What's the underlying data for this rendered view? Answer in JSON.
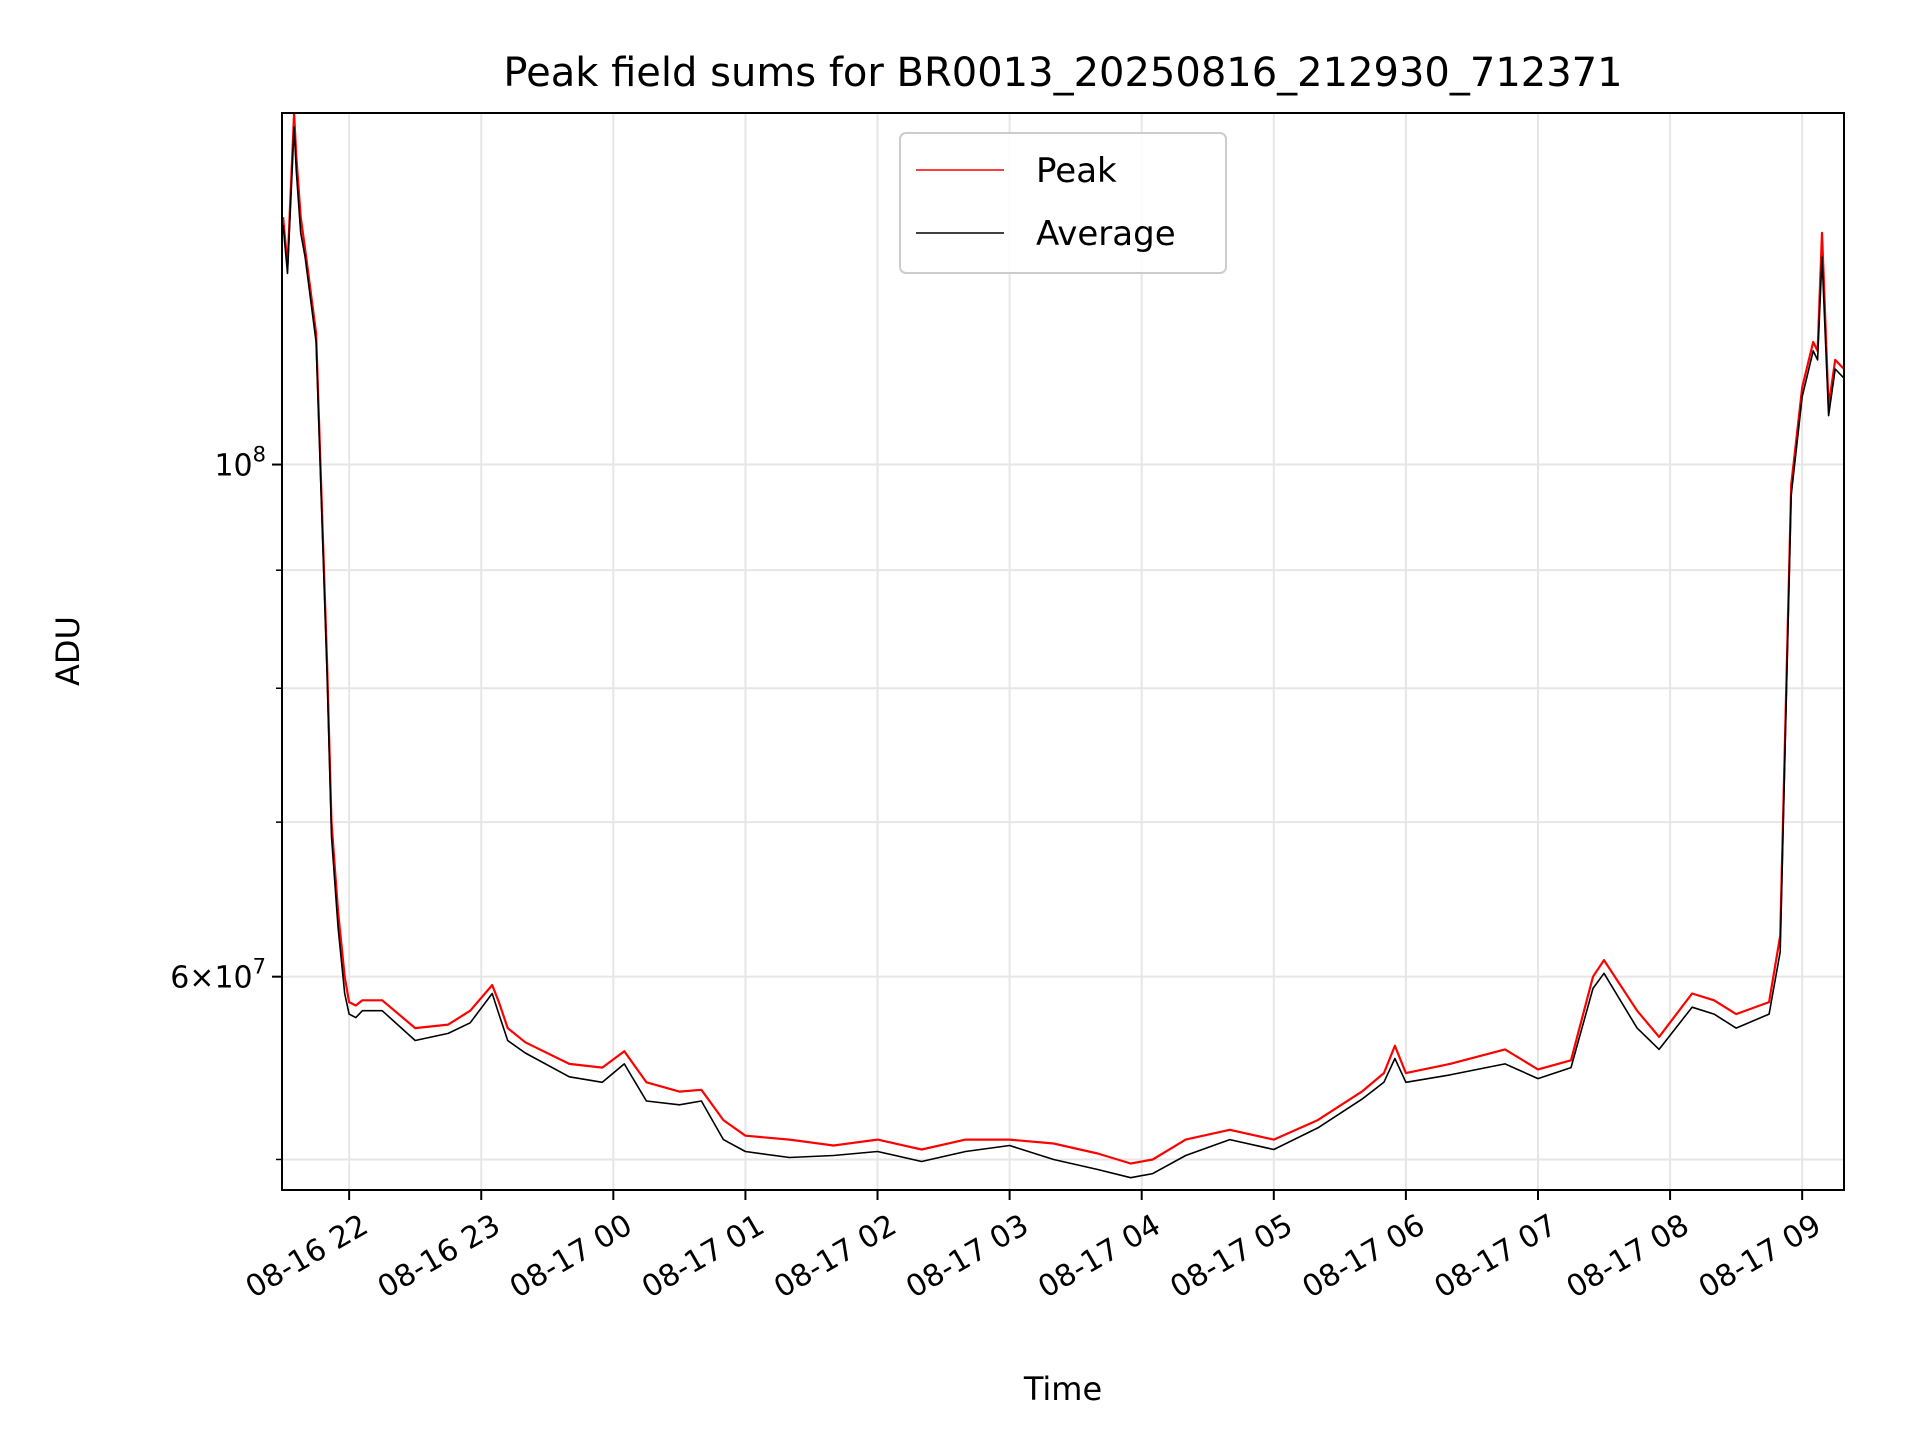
{
  "chart_data": {
    "type": "line",
    "title": "Peak field sums for BR0013_20250816_212930_712371",
    "xlabel": "Time",
    "ylabel": "ADU",
    "yscale": "log",
    "ylim": [
      48500000,
      142000000
    ],
    "xlim": [
      "2025-08-16 21:29:30",
      "2025-08-17 09:19:00"
    ],
    "grid": true,
    "legend_position": "upper center",
    "x_tick_labels": [
      "08-16 22",
      "08-16 23",
      "08-17 00",
      "08-17 01",
      "08-17 02",
      "08-17 03",
      "08-17 04",
      "08-17 05",
      "08-17 06",
      "08-17 07",
      "08-17 08",
      "08-17 09"
    ],
    "y_tick_labels": [
      {
        "value": 100000000,
        "base": "10",
        "exp": "8"
      },
      {
        "value": 60000000,
        "base": "6×10",
        "exp": "7"
      }
    ],
    "y_minor_ticks": [
      50000000,
      70000000,
      80000000,
      90000000
    ],
    "x": [
      "2025-08-16 21:30",
      "2025-08-16 21:32",
      "2025-08-16 21:35",
      "2025-08-16 21:36",
      "2025-08-16 21:38",
      "2025-08-16 21:40",
      "2025-08-16 21:45",
      "2025-08-16 21:50",
      "2025-08-16 21:52",
      "2025-08-16 21:55",
      "2025-08-16 21:58",
      "2025-08-16 22:00",
      "2025-08-16 22:03",
      "2025-08-16 22:06",
      "2025-08-16 22:15",
      "2025-08-16 22:30",
      "2025-08-16 22:45",
      "2025-08-16 22:55",
      "2025-08-16 23:05",
      "2025-08-16 23:08",
      "2025-08-16 23:12",
      "2025-08-16 23:20",
      "2025-08-16 23:40",
      "2025-08-16 23:55",
      "2025-08-17 00:05",
      "2025-08-17 00:15",
      "2025-08-17 00:30",
      "2025-08-17 00:40",
      "2025-08-17 00:50",
      "2025-08-17 01:00",
      "2025-08-17 01:20",
      "2025-08-17 01:40",
      "2025-08-17 02:00",
      "2025-08-17 02:20",
      "2025-08-17 02:40",
      "2025-08-17 03:00",
      "2025-08-17 03:20",
      "2025-08-17 03:40",
      "2025-08-17 03:55",
      "2025-08-17 04:05",
      "2025-08-17 04:20",
      "2025-08-17 04:40",
      "2025-08-17 05:00",
      "2025-08-17 05:20",
      "2025-08-17 05:40",
      "2025-08-17 05:50",
      "2025-08-17 05:55",
      "2025-08-17 06:00",
      "2025-08-17 06:20",
      "2025-08-17 06:45",
      "2025-08-17 07:00",
      "2025-08-17 07:15",
      "2025-08-17 07:25",
      "2025-08-17 07:30",
      "2025-08-17 07:45",
      "2025-08-17 07:55",
      "2025-08-17 08:10",
      "2025-08-17 08:20",
      "2025-08-17 08:30",
      "2025-08-17 08:45",
      "2025-08-17 08:50",
      "2025-08-17 08:55",
      "2025-08-17 09:00",
      "2025-08-17 09:05",
      "2025-08-17 09:07",
      "2025-08-17 09:09",
      "2025-08-17 09:12",
      "2025-08-17 09:15",
      "2025-08-17 09:19"
    ],
    "series": [
      {
        "name": "Peak",
        "color": "#ff0000",
        "values": [
          128000000,
          122000000,
          142000000,
          136000000,
          128000000,
          124000000,
          114000000,
          82000000,
          70000000,
          64000000,
          60000000,
          58500000,
          58300000,
          58600000,
          58600000,
          57000000,
          57200000,
          58000000,
          59500000,
          58500000,
          57000000,
          56200000,
          55000000,
          54800000,
          55700000,
          54000000,
          53500000,
          53600000,
          52000000,
          51200000,
          51000000,
          50700000,
          51000000,
          50500000,
          51000000,
          51000000,
          50800000,
          50300000,
          49800000,
          50000000,
          51000000,
          51500000,
          51000000,
          52000000,
          53500000,
          54500000,
          56000000,
          54500000,
          55000000,
          55800000,
          54700000,
          55200000,
          60000000,
          61000000,
          58000000,
          56500000,
          59000000,
          58600000,
          57800000,
          58500000,
          62500000,
          98000000,
          108000000,
          113000000,
          112000000,
          126000000,
          106000000,
          111000000,
          110000000
        ]
      },
      {
        "name": "Average",
        "color": "#000000",
        "values": [
          127000000,
          121000000,
          140000000,
          134000000,
          126000000,
          123000000,
          113000000,
          81000000,
          69000000,
          63000000,
          59000000,
          57800000,
          57600000,
          58000000,
          58000000,
          56300000,
          56700000,
          57300000,
          59000000,
          57800000,
          56300000,
          55600000,
          54300000,
          54000000,
          55000000,
          53000000,
          52800000,
          53000000,
          51000000,
          50400000,
          50100000,
          50200000,
          50400000,
          49900000,
          50400000,
          50700000,
          50000000,
          49500000,
          49100000,
          49300000,
          50200000,
          51000000,
          50500000,
          51600000,
          53100000,
          54000000,
          55300000,
          54000000,
          54400000,
          55000000,
          54200000,
          54800000,
          59300000,
          60200000,
          57000000,
          55800000,
          58200000,
          57800000,
          57000000,
          57800000,
          61500000,
          97000000,
          107000000,
          112000000,
          111000000,
          123000000,
          105000000,
          110000000,
          109000000
        ]
      }
    ]
  }
}
